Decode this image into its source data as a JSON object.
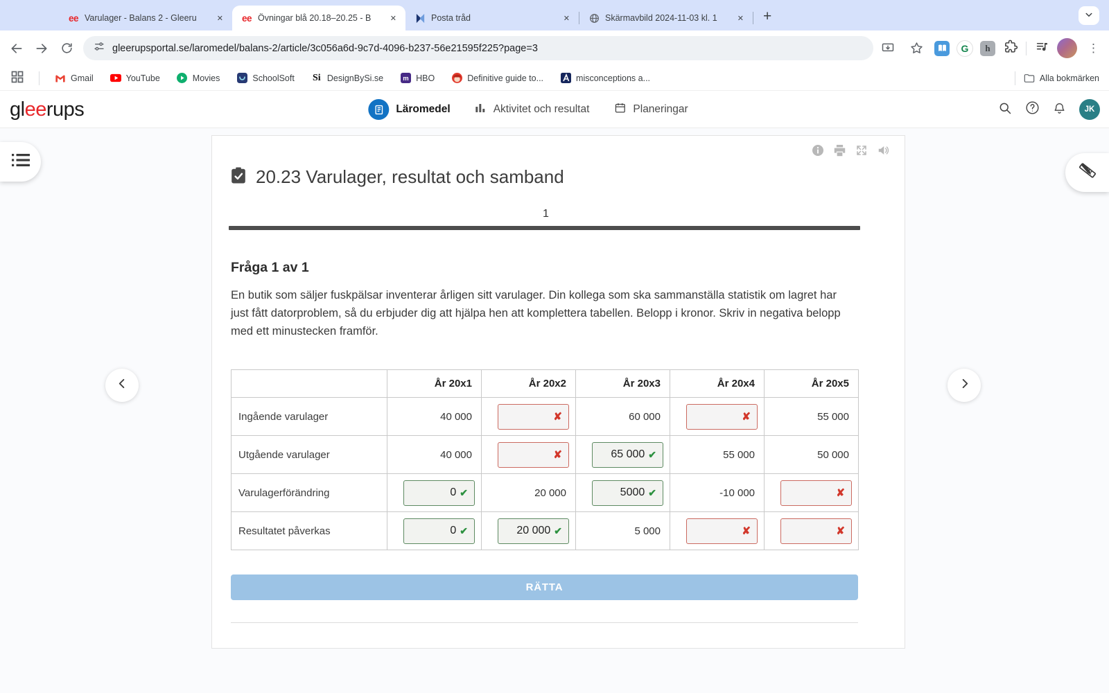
{
  "browser": {
    "tabs": [
      {
        "title": "Varulager - Balans 2 - Gleeru",
        "icon": "gleerups",
        "active": false
      },
      {
        "title": "Övningar blå 20.18–20.25 - B",
        "icon": "gleerups",
        "active": true
      },
      {
        "title": "Posta tråd",
        "icon": "posta",
        "active": false
      },
      {
        "title": "Skärmavbild 2024-11-03 kl. 1",
        "icon": "globe",
        "active": false
      }
    ],
    "url": "gleerupsportal.se/laromedel/balans-2/article/3c056a6d-9c7d-4096-b237-56e21595f225?page=3",
    "bookmarks": [
      {
        "label": "Gmail",
        "icon": "gmail"
      },
      {
        "label": "YouTube",
        "icon": "youtube"
      },
      {
        "label": "Movies",
        "icon": "movies"
      },
      {
        "label": "SchoolSoft",
        "icon": "schoolsoft"
      },
      {
        "label": "DesignBySi.se",
        "icon": "designbysi"
      },
      {
        "label": "HBO",
        "icon": "hbo"
      },
      {
        "label": "Definitive guide to...",
        "icon": "definitive"
      },
      {
        "label": "misconceptions a...",
        "icon": "misconceptions"
      }
    ],
    "all_bookmarks": "Alla bokmärken"
  },
  "header": {
    "logo_parts": {
      "pre": "gl",
      "accent": "ee",
      "post": "rups"
    },
    "nav": [
      {
        "label": "Läromedel",
        "icon": "laromedel",
        "active": true
      },
      {
        "label": "Aktivitet och resultat",
        "icon": "activity",
        "active": false
      },
      {
        "label": "Planeringar",
        "icon": "calendar",
        "active": false
      }
    ],
    "avatar_initials": "JK"
  },
  "exercise": {
    "title": "20.23 Varulager, resultat och samband",
    "page_number": "1",
    "question_heading": "Fråga 1 av 1",
    "question_text": "En butik som säljer fuskpälsar inventerar årligen sitt varulager. Din kollega som ska sammanställa statistik om lagret har just fått datorproblem, så du erbjuder dig att hjälpa hen att komplettera tabellen. Belopp i kronor. Skriv in negativa belopp med ett minustecken framför.",
    "submit_label": "RÄTTA",
    "table": {
      "headers": [
        "",
        "År 20x1",
        "År 20x2",
        "År 20x3",
        "År 20x4",
        "År 20x5"
      ],
      "rows": [
        {
          "label": "Ingående varulager",
          "cells": [
            {
              "type": "text",
              "value": "40 000"
            },
            {
              "type": "input",
              "value": "",
              "state": "wrong"
            },
            {
              "type": "text",
              "value": "60 000"
            },
            {
              "type": "input",
              "value": "",
              "state": "wrong"
            },
            {
              "type": "text",
              "value": "55 000"
            }
          ]
        },
        {
          "label": "Utgående varulager",
          "cells": [
            {
              "type": "text",
              "value": "40 000"
            },
            {
              "type": "input",
              "value": "",
              "state": "wrong"
            },
            {
              "type": "input",
              "value": "65 000",
              "state": "correct"
            },
            {
              "type": "text",
              "value": "55 000"
            },
            {
              "type": "text",
              "value": "50 000"
            }
          ]
        },
        {
          "label": "Varulagerförändring",
          "cells": [
            {
              "type": "input",
              "value": "0",
              "state": "correct"
            },
            {
              "type": "text",
              "value": "20 000"
            },
            {
              "type": "input",
              "value": "5000",
              "state": "correct"
            },
            {
              "type": "text",
              "value": "-10 000"
            },
            {
              "type": "input",
              "value": "",
              "state": "wrong"
            }
          ]
        },
        {
          "label": "Resultatet påverkas",
          "cells": [
            {
              "type": "input",
              "value": "0",
              "state": "correct"
            },
            {
              "type": "input",
              "value": "20 000",
              "state": "correct"
            },
            {
              "type": "text",
              "value": "5 000"
            },
            {
              "type": "input",
              "value": "",
              "state": "wrong"
            },
            {
              "type": "input",
              "value": "",
              "state": "wrong"
            }
          ]
        }
      ]
    }
  },
  "colors": {
    "tabstrip_bg": "#d6e1fb",
    "accent_blue": "#1273c4",
    "submit_blue": "#9cc3e5",
    "correct_green": "#2d9140",
    "wrong_red": "#d2372b",
    "avatar_teal": "#2a7f86",
    "logo_red": "#e8262a"
  }
}
